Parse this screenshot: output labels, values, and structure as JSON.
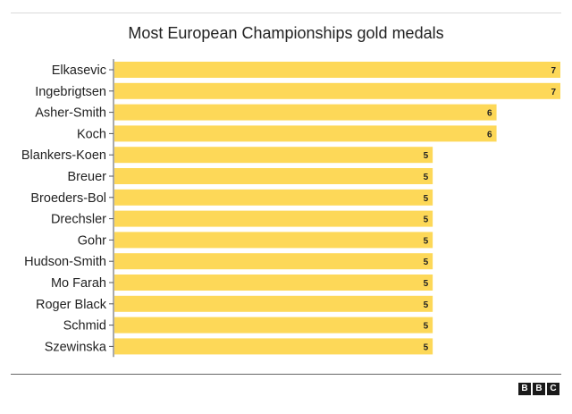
{
  "chart_data": {
    "type": "bar",
    "orientation": "horizontal",
    "title": "Most European Championships gold medals",
    "categories": [
      "Elkasevic",
      "Ingebrigtsen",
      "Asher-Smith",
      "Koch",
      "Blankers-Koen",
      "Breuer",
      "Broeders-Bol",
      "Drechsler",
      "Gohr",
      "Hudson-Smith",
      "Mo Farah",
      "Roger Black",
      "Schmid",
      "Szewinska"
    ],
    "values": [
      7,
      7,
      6,
      6,
      5,
      5,
      5,
      5,
      5,
      5,
      5,
      5,
      5,
      5
    ],
    "xlim": [
      0,
      7
    ],
    "bar_color": "#fdd858",
    "grid": false,
    "data_labels": "inside-end"
  },
  "logo": [
    "B",
    "B",
    "C"
  ]
}
